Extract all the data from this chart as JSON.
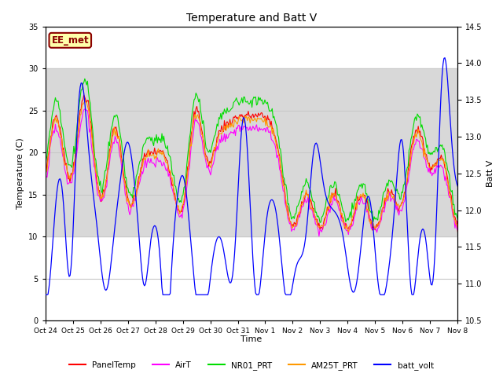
{
  "title": "Temperature and Batt V",
  "ylabel_left": "Temperature (C)",
  "ylabel_right": "Batt V",
  "xlabel": "Time",
  "ylim_left": [
    0,
    35
  ],
  "ylim_right": [
    10.5,
    14.5
  ],
  "annotation_text": "EE_met",
  "xtick_labels": [
    "Oct 24",
    "Oct 25",
    "Oct 26",
    "Oct 27",
    "Oct 28",
    "Oct 29",
    "Oct 30",
    "Oct 31",
    "Nov 1",
    "Nov 2",
    "Nov 3",
    "Nov 4",
    "Nov 5",
    "Nov 6",
    "Nov 7",
    "Nov 8"
  ],
  "shade_band": [
    10,
    30
  ],
  "colors": {
    "PanelTemp": "#ff0000",
    "AirT": "#ff00ff",
    "NR01_PRT": "#00dd00",
    "AM25T_PRT": "#ff9900",
    "batt_volt": "#0000ff"
  },
  "legend_labels": [
    "PanelTemp",
    "AirT",
    "NR01_PRT",
    "AM25T_PRT",
    "batt_volt"
  ],
  "plot_bg_color": "#ffffff",
  "shade_color": "#d8d8d8",
  "grid_color": "#c8c8c8",
  "annotation_bg": "#ffffaa",
  "annotation_edge": "#8B0000",
  "annotation_text_color": "#8B0000"
}
